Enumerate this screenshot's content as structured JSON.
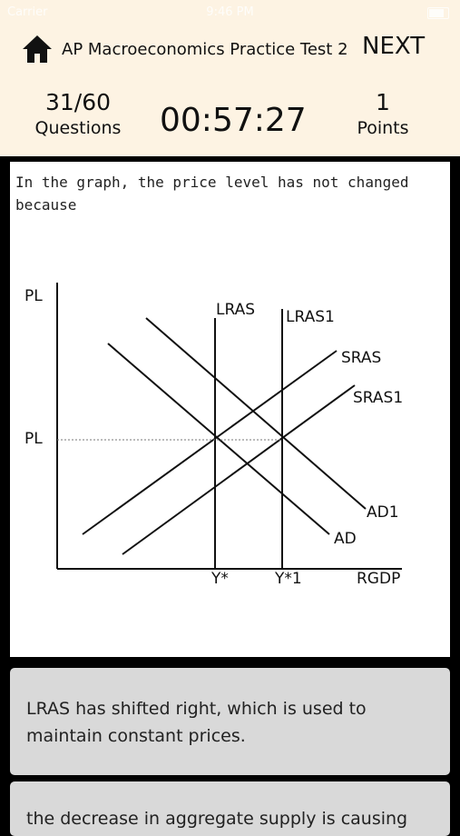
{
  "status_bar": {
    "carrier": "Carrier",
    "time": "9:46 PM"
  },
  "header": {
    "title": "AP Macroeconomics Practice Test 2",
    "next_label": "NEXT",
    "question_progress": "31/60",
    "questions_label": "Questions",
    "timer": "00:57:27",
    "points_value": "1",
    "points_label": "Points"
  },
  "question": {
    "text": "In the graph, the price level has not changed because",
    "graph_labels": {
      "y_axis": "PL",
      "pl_mark": "PL",
      "lras": "LRAS",
      "lras1": "LRAS1",
      "sras": "SRAS",
      "sras1": "SRAS1",
      "ad": "AD",
      "ad1": "AD1",
      "y_star": "Y*",
      "y_star1": "Y*1",
      "x_axis": "RGDP"
    }
  },
  "answers": [
    {
      "text": "LRAS has shifted right, which is used to maintain constant prices."
    },
    {
      "text": "the decrease in aggregate supply is causing"
    }
  ],
  "icons": {
    "home": "home-icon",
    "battery": "battery-icon"
  }
}
